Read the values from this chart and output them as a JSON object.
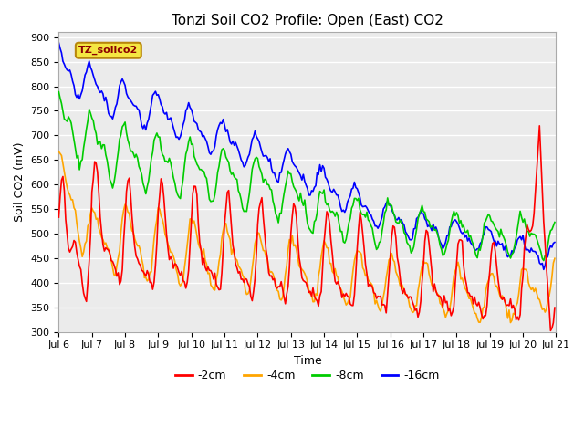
{
  "title": "Tonzi Soil CO2 Profile: Open (East) CO2",
  "xlabel": "Time",
  "ylabel": "Soil CO2 (mV)",
  "ylim": [
    300,
    910
  ],
  "xlim": [
    0,
    360
  ],
  "x_tick_labels": [
    "Jul 6",
    "Jul 7",
    "Jul 8",
    "Jul 9",
    "Jul 10",
    "Jul 11",
    "Jul 12",
    "Jul 13",
    "Jul 14",
    "Jul 15",
    "Jul 16",
    "Jul 17",
    "Jul 18",
    "Jul 19",
    "Jul 20",
    "Jul 21"
  ],
  "x_tick_positions": [
    0,
    24,
    48,
    72,
    96,
    120,
    144,
    168,
    192,
    216,
    240,
    264,
    288,
    312,
    336,
    360
  ],
  "yticks": [
    300,
    350,
    400,
    450,
    500,
    550,
    600,
    650,
    700,
    750,
    800,
    850,
    900
  ],
  "legend_label": "TZ_soilco2",
  "series_labels": [
    "-2cm",
    "-4cm",
    "-8cm",
    "-16cm"
  ],
  "series_colors": [
    "#ff0000",
    "#ffa500",
    "#00cc00",
    "#0000ff"
  ],
  "line_width": 1.2,
  "background_color": "#ffffff",
  "plot_bg_color": "#ebebeb",
  "title_fontsize": 11,
  "axis_fontsize": 9,
  "tick_fontsize": 8
}
